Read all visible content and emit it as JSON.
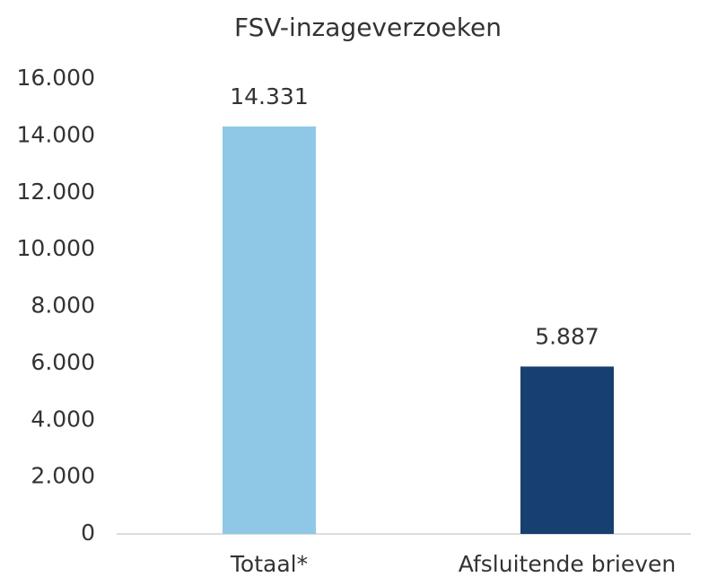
{
  "chart_data": {
    "type": "bar",
    "title": "FSV-inzageverzoeken",
    "categories": [
      "Totaal*",
      "Afsluitende brieven"
    ],
    "values": [
      14331,
      5887
    ],
    "value_labels": [
      "14.331",
      "5.887"
    ],
    "colors": [
      "#8fc8e7",
      "#173f6f"
    ],
    "ylim": [
      0,
      16000
    ],
    "yticks": [
      0,
      {
        "value": 2000,
        "label": "2.000"
      },
      {
        "value": 4000,
        "label": "4.000"
      },
      {
        "value": 6000,
        "label": "6.000"
      },
      {
        "value": 8000,
        "label": "8.000"
      },
      {
        "value": 10000,
        "label": "10.000"
      },
      {
        "value": 12000,
        "label": "12.000"
      },
      {
        "value": 14000,
        "label": "14.000"
      },
      {
        "value": 16000,
        "label": "16.000"
      }
    ],
    "grid": false
  }
}
